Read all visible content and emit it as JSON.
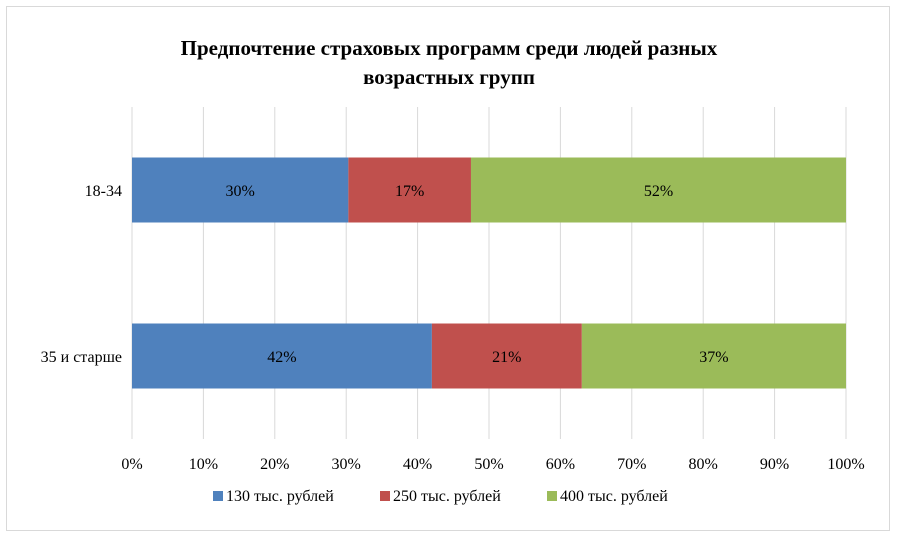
{
  "chart_data": {
    "type": "bar",
    "orientation": "horizontal",
    "stacked": "percent",
    "title": "Предпочтение страховых программ среди людей разных возрастных групп",
    "title_lines": [
      "Предпочтение страховых программ среди людей разных",
      "возрастных групп"
    ],
    "categories": [
      "18-34",
      "35 и старше"
    ],
    "series": [
      {
        "name": "130 тыс. рублей",
        "color": "#4f81bd",
        "values": [
          30,
          42
        ],
        "labels": [
          "30%",
          "42%"
        ]
      },
      {
        "name": "250 тыс. рублей",
        "color": "#c0504d",
        "values": [
          17,
          21
        ],
        "labels": [
          "17%",
          "21%"
        ]
      },
      {
        "name": "400 тыс. рублей",
        "color": "#9bbb59",
        "values": [
          52,
          37
        ],
        "labels": [
          "52%",
          "37%"
        ]
      }
    ],
    "xlim": [
      0,
      100
    ],
    "x_ticks": [
      "0%",
      "10%",
      "20%",
      "30%",
      "40%",
      "50%",
      "60%",
      "70%",
      "80%",
      "90%",
      "100%"
    ],
    "grid": true,
    "gridline_color": "#d9d9d9",
    "legend_position": "bottom"
  }
}
